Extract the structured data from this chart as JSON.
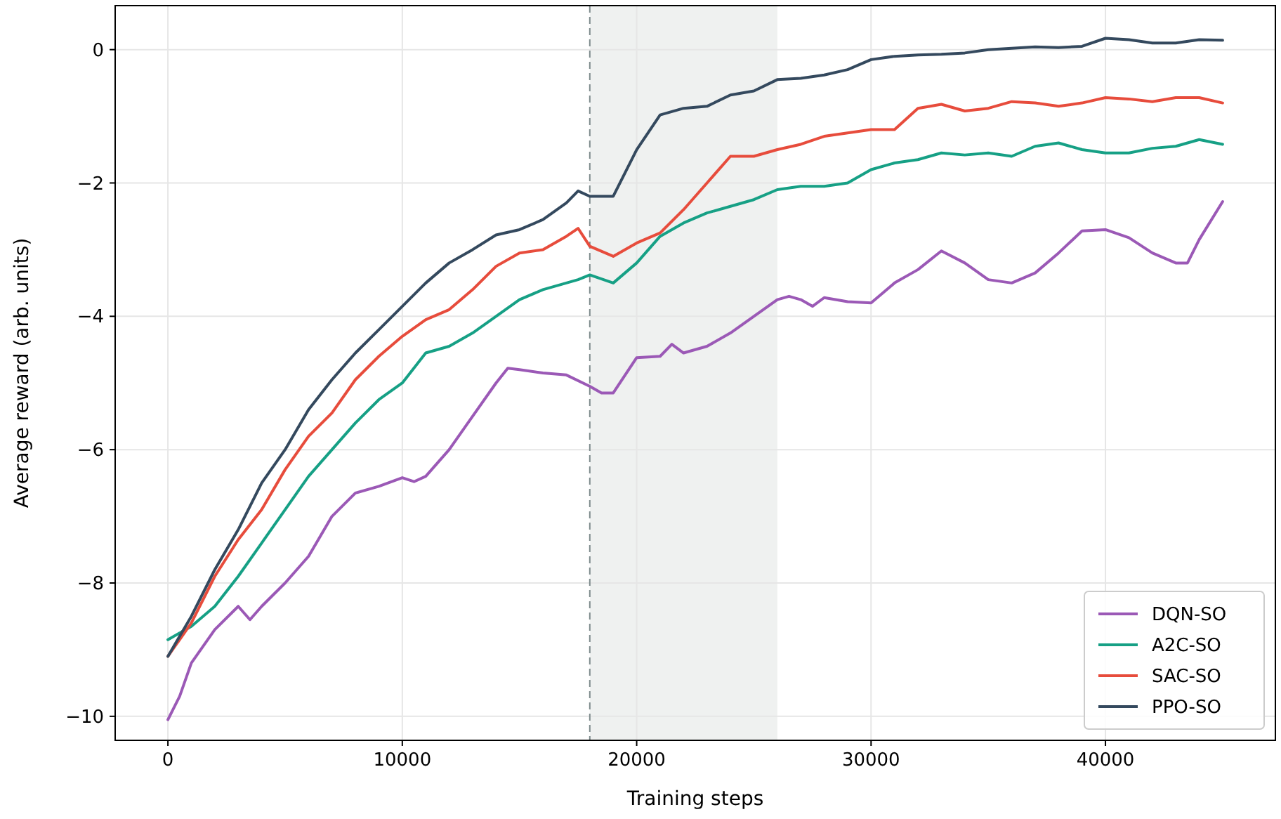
{
  "chart_data": {
    "type": "line",
    "xlabel": "Training steps",
    "ylabel": "Average reward (arb. units)",
    "xlim": [
      -2250,
      47250
    ],
    "ylim": [
      -10.36,
      0.66
    ],
    "xticks": [
      0,
      10000,
      20000,
      30000,
      40000
    ],
    "yticks": [
      {
        "value": -10,
        "label": "−10"
      },
      {
        "value": -8,
        "label": "−8"
      },
      {
        "value": -6,
        "label": "−6"
      },
      {
        "value": -4,
        "label": "−4"
      },
      {
        "value": -2,
        "label": "−2"
      },
      0
    ],
    "grid": true,
    "legend": "bottom right",
    "line_style": "solid",
    "marker": "none",
    "ref_lines": [
      {
        "axis": "x",
        "value": 18000,
        "label": null,
        "color": "#7f8c8d",
        "line_style": "dashed"
      }
    ],
    "bands": [
      {
        "axis": "x",
        "from": 18000,
        "to": 26000,
        "label": null,
        "color": "#dfe4e2"
      }
    ],
    "series": [
      {
        "name": "DQN-SO",
        "color": "#9b59b6",
        "x": [
          0,
          500,
          1000,
          2000,
          3000,
          3500,
          4000,
          5000,
          6000,
          7000,
          8000,
          9000,
          10000,
          10500,
          11000,
          12000,
          13000,
          14000,
          14500,
          15000,
          16000,
          17000,
          18000,
          18500,
          19000,
          20000,
          21000,
          21500,
          22000,
          23000,
          24000,
          25000,
          26000,
          26500,
          27000,
          27500,
          28000,
          29000,
          30000,
          31000,
          32000,
          33000,
          34000,
          35000,
          36000,
          37000,
          38000,
          39000,
          40000,
          41000,
          42000,
          43000,
          43500,
          44000,
          45000
        ],
        "values": [
          -10.05,
          -9.7,
          -9.2,
          -8.7,
          -8.35,
          -8.55,
          -8.35,
          -8.0,
          -7.6,
          -7.0,
          -6.65,
          -6.55,
          -6.42,
          -6.48,
          -6.4,
          -6.0,
          -5.5,
          -5.0,
          -4.78,
          -4.8,
          -4.85,
          -4.88,
          -5.05,
          -5.15,
          -5.15,
          -4.62,
          -4.6,
          -4.42,
          -4.55,
          -4.45,
          -4.25,
          -4.0,
          -3.75,
          -3.7,
          -3.75,
          -3.85,
          -3.72,
          -3.78,
          -3.8,
          -3.5,
          -3.3,
          -3.02,
          -3.2,
          -3.45,
          -3.5,
          -3.35,
          -3.05,
          -2.72,
          -2.7,
          -2.82,
          -3.05,
          -3.2,
          -3.2,
          -2.85,
          -2.28
        ]
      },
      {
        "name": "A2C-SO",
        "color": "#16a085",
        "x": [
          0,
          1000,
          2000,
          3000,
          4000,
          5000,
          6000,
          7000,
          8000,
          9000,
          10000,
          11000,
          12000,
          13000,
          14000,
          15000,
          16000,
          17000,
          17500,
          18000,
          19000,
          20000,
          21000,
          22000,
          23000,
          24000,
          25000,
          26000,
          27000,
          28000,
          29000,
          30000,
          31000,
          32000,
          33000,
          34000,
          35000,
          36000,
          37000,
          38000,
          39000,
          40000,
          41000,
          42000,
          43000,
          44000,
          45000
        ],
        "values": [
          -8.85,
          -8.65,
          -8.35,
          -7.9,
          -7.4,
          -6.9,
          -6.4,
          -6.0,
          -5.6,
          -5.25,
          -5.0,
          -4.55,
          -4.45,
          -4.25,
          -4.0,
          -3.75,
          -3.6,
          -3.5,
          -3.45,
          -3.38,
          -3.5,
          -3.2,
          -2.8,
          -2.6,
          -2.45,
          -2.35,
          -2.25,
          -2.1,
          -2.05,
          -2.05,
          -2.0,
          -1.8,
          -1.7,
          -1.65,
          -1.55,
          -1.58,
          -1.55,
          -1.6,
          -1.45,
          -1.4,
          -1.5,
          -1.55,
          -1.55,
          -1.48,
          -1.45,
          -1.35,
          -1.42
        ]
      },
      {
        "name": "SAC-SO",
        "color": "#e74c3c",
        "x": [
          0,
          1000,
          2000,
          3000,
          4000,
          5000,
          6000,
          7000,
          8000,
          9000,
          10000,
          11000,
          12000,
          13000,
          14000,
          15000,
          16000,
          17000,
          17500,
          18000,
          19000,
          20000,
          21000,
          22000,
          23000,
          24000,
          25000,
          26000,
          27000,
          28000,
          29000,
          30000,
          31000,
          32000,
          33000,
          34000,
          35000,
          36000,
          37000,
          38000,
          39000,
          40000,
          41000,
          42000,
          43000,
          44000,
          45000
        ],
        "values": [
          -9.1,
          -8.6,
          -7.9,
          -7.35,
          -6.9,
          -6.3,
          -5.8,
          -5.45,
          -4.95,
          -4.6,
          -4.3,
          -4.05,
          -3.9,
          -3.6,
          -3.25,
          -3.05,
          -3.0,
          -2.8,
          -2.68,
          -2.95,
          -3.1,
          -2.9,
          -2.75,
          -2.4,
          -2.0,
          -1.6,
          -1.6,
          -1.5,
          -1.42,
          -1.3,
          -1.25,
          -1.2,
          -1.2,
          -0.88,
          -0.82,
          -0.92,
          -0.88,
          -0.78,
          -0.8,
          -0.85,
          -0.8,
          -0.72,
          -0.74,
          -0.78,
          -0.72,
          -0.72,
          -0.8
        ]
      },
      {
        "name": "PPO-SO",
        "color": "#34495e",
        "x": [
          0,
          1000,
          2000,
          3000,
          4000,
          5000,
          6000,
          7000,
          8000,
          9000,
          10000,
          11000,
          12000,
          13000,
          14000,
          15000,
          16000,
          17000,
          17500,
          18000,
          19000,
          20000,
          21000,
          22000,
          23000,
          24000,
          25000,
          26000,
          27000,
          28000,
          29000,
          30000,
          31000,
          32000,
          33000,
          34000,
          35000,
          36000,
          37000,
          38000,
          39000,
          40000,
          41000,
          42000,
          43000,
          44000,
          45000
        ],
        "values": [
          -9.1,
          -8.5,
          -7.8,
          -7.2,
          -6.5,
          -6.0,
          -5.4,
          -4.95,
          -4.55,
          -4.2,
          -3.85,
          -3.5,
          -3.2,
          -3.0,
          -2.78,
          -2.7,
          -2.55,
          -2.3,
          -2.12,
          -2.2,
          -2.2,
          -1.5,
          -0.98,
          -0.88,
          -0.85,
          -0.68,
          -0.62,
          -0.45,
          -0.43,
          -0.38,
          -0.3,
          -0.15,
          -0.1,
          -0.08,
          -0.07,
          -0.05,
          0.0,
          0.02,
          0.04,
          0.03,
          0.05,
          0.17,
          0.15,
          0.1,
          0.1,
          0.15,
          0.14
        ]
      }
    ]
  }
}
